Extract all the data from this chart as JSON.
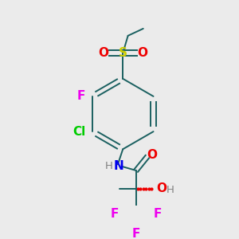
{
  "background_color": "#ebebeb",
  "atom_colors": {
    "C": "#1a1a1a",
    "H": "#808080",
    "N": "#0000ee",
    "O": "#ee0000",
    "F": "#ee00ee",
    "Cl": "#00cc00",
    "S": "#cccc00",
    "bond": "#1a6060"
  },
  "figsize": [
    3.0,
    3.0
  ],
  "dpi": 100
}
